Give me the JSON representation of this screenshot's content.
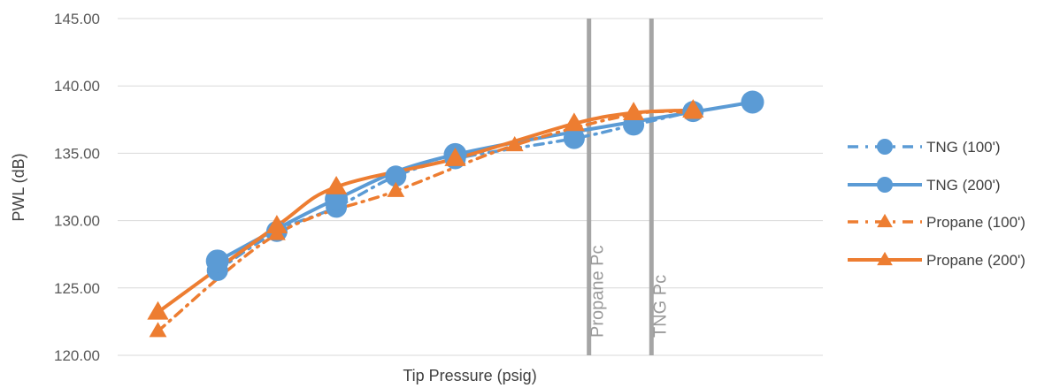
{
  "chart_data": {
    "type": "scatter",
    "title": "",
    "xlabel": "Tip Pressure (psig)",
    "ylabel": "PWL (dB)",
    "ylim": [
      120,
      145
    ],
    "yticks": [
      "120.00",
      "125.00",
      "130.00",
      "135.00",
      "140.00",
      "145.00"
    ],
    "xlim": [
      0,
      16
    ],
    "x_tick_labels_shown": false,
    "grid": "horizontal",
    "legend_position": "right",
    "series": [
      {
        "name": "TNG (100')",
        "color": "#5B9BD5",
        "marker": "circle",
        "line": "dashed",
        "x": [
          1,
          2,
          3,
          4,
          5,
          7,
          8,
          9
        ],
        "y": [
          126.3,
          129.2,
          131.0,
          133.3,
          134.6,
          136.1,
          137.1,
          138.1
        ]
      },
      {
        "name": "TNG (200')",
        "color": "#5B9BD5",
        "marker": "circle",
        "line": "solid",
        "x": [
          1,
          3,
          5,
          10
        ],
        "y": [
          127.0,
          131.6,
          134.9,
          138.8
        ]
      },
      {
        "name": "Propane (100')",
        "color": "#ED7D31",
        "marker": "triangle",
        "line": "dashed",
        "x": [
          0,
          2,
          4,
          6,
          8,
          9
        ],
        "y": [
          121.8,
          129.0,
          132.2,
          135.6,
          137.9,
          138.0
        ]
      },
      {
        "name": "Propane (200')",
        "color": "#ED7D31",
        "marker": "triangle",
        "line": "solid",
        "x": [
          0,
          2,
          3,
          5,
          7,
          8,
          9
        ],
        "y": [
          123.2,
          129.6,
          132.5,
          134.6,
          137.2,
          138.0,
          138.2
        ]
      }
    ],
    "reference_lines": [
      {
        "label": "Propane Pc",
        "x": 7.25,
        "color": "#A5A5A5"
      },
      {
        "label": "TNG Pc",
        "x": 8.3,
        "color": "#A5A5A5"
      }
    ]
  }
}
